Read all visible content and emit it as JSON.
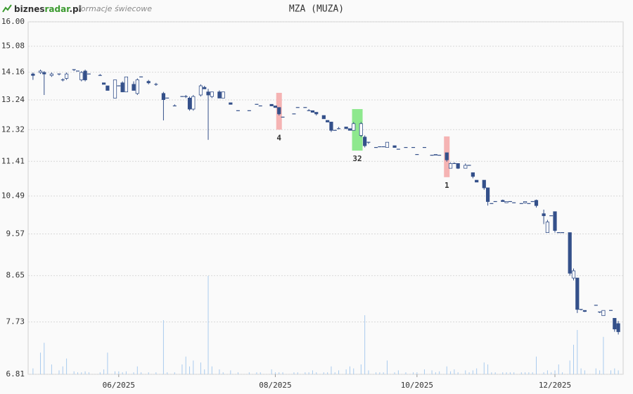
{
  "header": {
    "logo": [
      "biznes",
      "radar",
      ".pl"
    ],
    "subtitle": "formacje świecowe"
  },
  "chart_data": {
    "type": "candlestick",
    "title": "MZA (MUZA)",
    "log_scale": true,
    "grid": true,
    "up_color": "#ffffff",
    "down_color": "#34508a",
    "volume_color": "#a9cbee",
    "xlim": [
      -1.3,
      158.3
    ],
    "xticks": [
      {
        "value": 23,
        "label": "06/2025"
      },
      {
        "value": 65,
        "label": "08/2025"
      },
      {
        "value": 103,
        "label": "10/2025"
      },
      {
        "value": 140,
        "label": "12/2025"
      }
    ],
    "ylim": [
      6.81,
      16.0
    ],
    "yticks": [
      {
        "value": 16.0,
        "label": "16.00"
      },
      15.08,
      14.16,
      13.24,
      12.32,
      11.41,
      10.49,
      9.57,
      8.65,
      7.73,
      6.81
    ],
    "volume_lim": [
      0,
      100
    ],
    "x": [
      0,
      2,
      3,
      5,
      7,
      8,
      9,
      11,
      12,
      13,
      14,
      15,
      18,
      19,
      20,
      22,
      23,
      24,
      25,
      27,
      28,
      29,
      31,
      33,
      35,
      36,
      38,
      40,
      41,
      42,
      43,
      45,
      46,
      47,
      48,
      50,
      51,
      53,
      55,
      58,
      60,
      61,
      64,
      65,
      66,
      67,
      70,
      71,
      73,
      74,
      75,
      76,
      78,
      79,
      80,
      81,
      82,
      84,
      85,
      86,
      88,
      89,
      90,
      92,
      93,
      94,
      95,
      97,
      98,
      100,
      102,
      103,
      105,
      107,
      108,
      109,
      111,
      112,
      113,
      114,
      116,
      117,
      118,
      119,
      121,
      122,
      123,
      124,
      126,
      127,
      128,
      129,
      131,
      132,
      133,
      134,
      135,
      137,
      138,
      139,
      140,
      141,
      142,
      144,
      145,
      146,
      147,
      148,
      151,
      152,
      153,
      155,
      156,
      157
    ],
    "open": [
      14.1,
      14.15,
      14.15,
      14.05,
      14.1,
      13.9,
      13.95,
      14.25,
      14.2,
      13.9,
      14.2,
      14.1,
      14.05,
      13.8,
      13.7,
      13.3,
      13.7,
      13.8,
      13.5,
      13.75,
      13.45,
      14.0,
      13.85,
      13.75,
      13.45,
      13.3,
      13.05,
      13.35,
      13.35,
      13.3,
      12.95,
      13.4,
      13.65,
      13.5,
      13.35,
      13.5,
      13.3,
      13.15,
      12.9,
      12.9,
      13.1,
      13.05,
      13.1,
      13.05,
      13.0,
      12.7,
      12.8,
      13.0,
      13.0,
      12.9,
      12.9,
      12.85,
      12.75,
      12.6,
      12.55,
      12.3,
      12.35,
      12.4,
      12.35,
      12.3,
      12.15,
      12.1,
      11.95,
      11.8,
      11.82,
      11.82,
      11.8,
      11.85,
      11.75,
      11.8,
      11.8,
      11.6,
      11.8,
      11.58,
      11.58,
      11.58,
      11.65,
      11.22,
      11.35,
      11.35,
      11.22,
      11.3,
      11.1,
      10.9,
      10.9,
      10.7,
      10.3,
      10.35,
      10.38,
      10.32,
      10.35,
      10.32,
      10.3,
      10.32,
      10.3,
      10.35,
      10.38,
      10.05,
      9.6,
      10.0,
      10.1,
      9.6,
      9.6,
      9.6,
      8.6,
      8.6,
      7.97,
      7.95,
      8.05,
      7.92,
      7.85,
      7.95,
      7.8,
      7.7
    ],
    "high": [
      14.15,
      14.25,
      14.2,
      14.15,
      14.1,
      13.95,
      14.15,
      14.25,
      14.2,
      14.2,
      14.25,
      14.1,
      14.1,
      13.8,
      13.7,
      13.9,
      13.7,
      13.85,
      14.0,
      13.85,
      13.95,
      14.0,
      13.9,
      13.8,
      13.5,
      13.3,
      13.1,
      13.35,
      13.4,
      13.35,
      13.4,
      13.75,
      13.7,
      13.6,
      13.5,
      13.55,
      13.5,
      13.15,
      12.9,
      12.9,
      13.1,
      13.05,
      13.1,
      13.05,
      13.0,
      12.7,
      12.8,
      13.0,
      13.0,
      12.95,
      12.9,
      12.85,
      12.75,
      12.6,
      12.55,
      12.3,
      12.4,
      12.4,
      12.35,
      12.55,
      12.55,
      12.15,
      11.95,
      11.8,
      11.82,
      11.82,
      11.95,
      11.85,
      11.75,
      11.8,
      11.8,
      11.6,
      11.8,
      11.58,
      11.6,
      11.58,
      11.65,
      11.38,
      11.38,
      11.35,
      11.35,
      11.3,
      11.1,
      10.9,
      10.9,
      10.7,
      10.3,
      10.35,
      10.4,
      10.35,
      10.35,
      10.32,
      10.3,
      10.35,
      10.3,
      10.35,
      10.4,
      10.15,
      9.9,
      10.0,
      10.1,
      9.6,
      9.6,
      9.6,
      8.8,
      8.6,
      7.97,
      7.95,
      8.05,
      7.92,
      7.95,
      7.95,
      7.8,
      7.75
    ],
    "low": [
      13.9,
      14.1,
      13.4,
      14.0,
      14.05,
      13.85,
      13.9,
      14.2,
      14.2,
      13.85,
      13.85,
      14.1,
      14.05,
      13.75,
      13.55,
      13.3,
      13.7,
      13.5,
      13.5,
      13.55,
      13.4,
      14.0,
      13.75,
      13.7,
      12.6,
      13.3,
      13.05,
      13.35,
      13.3,
      12.9,
      12.9,
      13.35,
      13.6,
      12.02,
      13.3,
      13.3,
      13.3,
      13.1,
      12.9,
      12.9,
      13.1,
      13.05,
      13.05,
      13.0,
      12.75,
      12.7,
      12.8,
      13.0,
      13.0,
      12.9,
      12.85,
      12.75,
      12.65,
      12.55,
      12.25,
      12.3,
      12.35,
      12.35,
      12.3,
      12.3,
      12.1,
      11.8,
      11.9,
      11.8,
      11.82,
      11.82,
      11.8,
      11.8,
      11.75,
      11.8,
      11.8,
      11.6,
      11.8,
      11.58,
      11.58,
      11.58,
      11.4,
      11.22,
      11.35,
      11.2,
      11.22,
      11.3,
      10.95,
      10.85,
      10.65,
      10.25,
      10.3,
      10.35,
      10.35,
      10.32,
      10.35,
      10.32,
      10.3,
      10.3,
      10.3,
      10.35,
      10.2,
      9.8,
      9.6,
      10.0,
      9.6,
      9.6,
      9.6,
      8.65,
      8.55,
      7.9,
      7.95,
      7.92,
      8.05,
      7.9,
      7.85,
      7.95,
      7.55,
      7.5
    ],
    "close": [
      14.05,
      14.2,
      14.1,
      14.1,
      14.1,
      13.9,
      14.1,
      14.25,
      14.2,
      14.15,
      13.9,
      14.1,
      14.05,
      13.75,
      13.55,
      13.9,
      13.7,
      13.5,
      14.0,
      13.55,
      13.9,
      14.0,
      13.8,
      13.75,
      13.25,
      13.3,
      13.05,
      13.35,
      13.35,
      12.95,
      13.35,
      13.7,
      13.6,
      13.4,
      13.5,
      13.3,
      13.5,
      13.1,
      12.9,
      12.9,
      13.1,
      13.05,
      13.05,
      13.0,
      12.8,
      12.7,
      12.8,
      13.0,
      13.0,
      12.9,
      12.85,
      12.8,
      12.65,
      12.55,
      12.3,
      12.3,
      12.35,
      12.35,
      12.3,
      12.5,
      12.5,
      11.85,
      11.95,
      11.8,
      11.82,
      11.82,
      11.95,
      11.8,
      11.75,
      11.8,
      11.8,
      11.6,
      11.8,
      11.58,
      11.6,
      11.58,
      11.45,
      11.35,
      11.35,
      11.22,
      11.3,
      11.3,
      11.0,
      10.85,
      10.7,
      10.35,
      10.3,
      10.35,
      10.35,
      10.35,
      10.35,
      10.32,
      10.3,
      10.35,
      10.3,
      10.35,
      10.25,
      10.0,
      9.85,
      10.0,
      9.65,
      9.6,
      9.6,
      8.7,
      8.75,
      7.97,
      7.97,
      7.93,
      8.05,
      7.92,
      7.95,
      7.95,
      7.6,
      7.55
    ],
    "volume": [
      6,
      22,
      32,
      10,
      4,
      8,
      16,
      3,
      2,
      2,
      3,
      2,
      2,
      5,
      22,
      3,
      3,
      2,
      3,
      2,
      8,
      2,
      2,
      2,
      55,
      2,
      2,
      10,
      18,
      8,
      14,
      12,
      5,
      100,
      8,
      5,
      2,
      4,
      2,
      2,
      2,
      2,
      5,
      2,
      2,
      2,
      2,
      2,
      2,
      2,
      4,
      2,
      2,
      2,
      8,
      2,
      4,
      5,
      8,
      6,
      10,
      60,
      4,
      2,
      2,
      2,
      14,
      2,
      4,
      2,
      2,
      2,
      5,
      4,
      2,
      3,
      8,
      3,
      5,
      2,
      4,
      2,
      4,
      6,
      12,
      10,
      2,
      2,
      2,
      2,
      2,
      2,
      2,
      2,
      2,
      2,
      18,
      2,
      4,
      2,
      4,
      10,
      2,
      14,
      30,
      45,
      6,
      4,
      6,
      4,
      38,
      4,
      6,
      4
    ],
    "annotations": [
      {
        "label": "4",
        "x": 66,
        "range": [
          13.47,
          12.32
        ],
        "color": "#f5b3b3"
      },
      {
        "label": "32",
        "x": 87,
        "range": [
          12.95,
          11.71
        ],
        "color": "#8ee88e"
      },
      {
        "label": "1",
        "x": 111,
        "range": [
          12.12,
          10.98
        ],
        "color": "#f5b3b3"
      }
    ]
  }
}
